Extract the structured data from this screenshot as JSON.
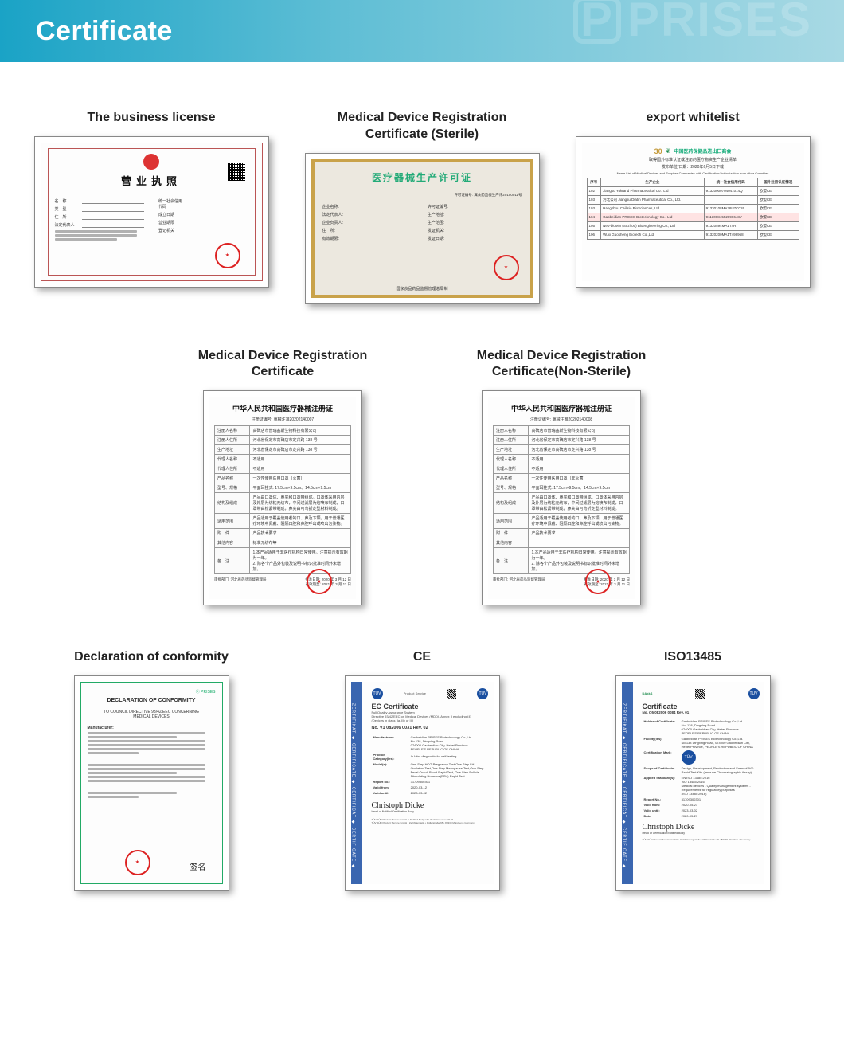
{
  "banner": {
    "title": "Certificate",
    "watermark_text": "PRISES",
    "gradient_from": "#1aa3c6",
    "gradient_to": "#a8d9e4"
  },
  "row1": [
    {
      "title": "The business license",
      "type": "business_license",
      "doc_title": "营业执照",
      "left_labels": [
        "名　称",
        "类　型",
        "住　所",
        "法定代表人"
      ],
      "right_labels": [
        "统一社会信用代码",
        "成立日期",
        "营业期限",
        "登记机关"
      ],
      "seal_text": "★"
    },
    {
      "title": "Medical Device Registration Certificate (Sterile)",
      "type": "gold_permit",
      "doc_title": "医疗器械生产许可证",
      "field_labels_left": [
        "企业名称:",
        "法定代表人:",
        "企业负责人:",
        "住　所:",
        "有效期限:"
      ],
      "field_labels_right": [
        "许可证编号:",
        "生产地址:",
        "生产范围:",
        "发证机关:",
        "发证日期:"
      ],
      "footer": "国家食品药品监督管理总局制",
      "top_note": "许可证编号: 冀食药监械生产许20150011号"
    },
    {
      "title": "export whitelist",
      "type": "whitelist",
      "logo_text": "中国医药保健品进出口商会",
      "logo_prefix": "30",
      "sub1": "取得国外标准认证或注册的医疗物资生产企业清单",
      "sub2": "发布单位/日期：2020年6月5日下载",
      "sub3": "Name List of Medical Devices and Supplies Companies with Certification/Authorization from other Countries",
      "columns": [
        "序号",
        "生产企业",
        "统一社会信用代码",
        "国外注册认证情况"
      ],
      "rows": [
        [
          "102",
          "Jiangsu Yukrand Pharmaceutical Co., Ltd",
          "91320000704041014Q",
          "欧盟CE"
        ],
        [
          "103",
          "河北公司  Jiangsu Diatin Pharmaceutical Co., Ltd.",
          "",
          "欧盟CE"
        ],
        [
          "103",
          "Hangzhou Cailisio BioSciences, Ltd.",
          "91330108MA28U7C01F",
          "欧盟CE"
        ],
        [
          "104",
          "Gaobeidian PRISES Biotechnology Co., Ltd",
          "91130684552890648Y",
          "欧盟CE"
        ],
        [
          "105",
          "Neo-bioMin (Suzhou) Bioengineering Co., Ltd",
          "91320594MA1T4R",
          "欧盟CE"
        ],
        [
          "106",
          "Wuxi Guosheng Biotech Co.,Ltd",
          "91320200MA1T498968",
          "欧盟CE"
        ]
      ],
      "highlight_row_index": 3
    }
  ],
  "row2": [
    {
      "title": "Medical Device Registration Certificate",
      "type": "cn_reg",
      "doc_title": "中华人民共和国医疗器械注册证",
      "doc_sub": "注册证编号: 冀械注准20202140007",
      "fields": [
        [
          "注册人名称",
          "高碑店市普瑞塞斯生物科技有限公司"
        ],
        [
          "注册人住所",
          "河北省保定市高碑店市定兴路 138 号"
        ],
        [
          "生产地址",
          "河北省保定市高碑店市定兴路 138 号"
        ],
        [
          "代理人名称",
          "不适用"
        ],
        [
          "代理人住所",
          "不适用"
        ],
        [
          "产品名称",
          "一次性使用医用口罩（灭菌）"
        ],
        [
          "型号、规格",
          "平面耳挂式: 17.5cm×9.5cm、14.5cm×9.5cm"
        ],
        [
          "结构及组成",
          "产品由口罩体、鼻夹和口罩带组成。口罩体采用内层及外层为纺粘无纺布，中间过滤层为熔喷布制成，口罩带由松紧带制成，鼻夹由可弯折定型材料制成。"
        ],
        [
          "适用范围",
          "产品适用于覆盖使用者的口、鼻及下颌，用于普通医疗环境中佩戴、阻隔口腔和鼻腔呼出或喷出污染物。"
        ],
        [
          "附　件",
          "产品技术要求"
        ],
        [
          "其他内容",
          "标准无纺布等"
        ],
        [
          "备　注",
          "1.本产品适用于非医疗机构日常使用。注意提示有效期为一年。\n2. 除各个产品外包装及说明书标识批准时间外未增加。"
        ]
      ],
      "footer_left": "审批部门: 河北省药品监督管理局",
      "footer_right": "批准日期: 2020 年 3 月 12 日\n有效期至: 2021 年 3 月 11 日"
    },
    {
      "title": "Medical Device Registration Certificate(Non-Sterile)",
      "type": "cn_reg",
      "doc_title": "中华人民共和国医疗器械注册证",
      "doc_sub": "注册证编号: 冀械注准20202140008",
      "fields": [
        [
          "注册人名称",
          "高碑店市普瑞塞斯生物科技有限公司"
        ],
        [
          "注册人住所",
          "河北省保定市高碑店市定兴路 138 号"
        ],
        [
          "生产地址",
          "河北省保定市高碑店市定兴路 138 号"
        ],
        [
          "代理人名称",
          "不适用"
        ],
        [
          "代理人住所",
          "不适用"
        ],
        [
          "产品名称",
          "一次性使用医用口罩（非灭菌）"
        ],
        [
          "型号、规格",
          "平面耳挂式: 17.5cm×9.5cm、14.5cm×9.5cm"
        ],
        [
          "结构及组成",
          "产品由口罩体、鼻夹和口罩带组成。口罩体采用内层及外层为纺粘无纺布，中间过滤层为熔喷布制成，口罩带由松紧带制成，鼻夹由可弯折定型材料制成。"
        ],
        [
          "适用范围",
          "产品适用于覆盖使用者的口、鼻及下颌，用于普通医疗环境中佩戴、阻隔口腔和鼻腔呼出或喷出污染物。"
        ],
        [
          "附　件",
          "产品技术要求"
        ],
        [
          "其他内容",
          ""
        ],
        [
          "备　注",
          "1.本产品适用于非医疗机构日常使用。注意提示有效期为一年。\n2. 除各个产品外包装及说明书标识批准时间外未增加。"
        ]
      ],
      "footer_left": "审批部门: 河北省药品监督管理局",
      "footer_right": "批准日期: 2020 年 3 月 12 日\n有效期至: 2021 年 3 月 11 日"
    }
  ],
  "row3": [
    {
      "title": "Declaration of conformity",
      "type": "doc_conformity",
      "head1": "DECLARATION OF CONFORMITY",
      "head2": "TO COUNCIL DIRECTIVE 93/42/EEC CONCERNING",
      "head3": "MEDICAL DEVICES",
      "manufacturer_label": "Manufacturer:",
      "signature_name": "签名"
    },
    {
      "title": "CE",
      "type": "ec_cert",
      "strip_text": "ZERTIFIKAT ◆ CERTIFICATE ◆ CERTIFICAT ◆ CERTIFICATE ◆",
      "doc_title": "EC Certificate",
      "doc_sub": "Full Quality Assurance System\nDirective 93/42/EEC on Medical Devices (MDD), Annex II excluding (4)\n(Devices in class IIa, IIb or III)",
      "no_label": "No. V1 082006 0031 Rev. 02",
      "rows": [
        [
          "Manufacturer:",
          "Gaobeidian PRISES Biotechnology Co.,Ltd.\nNo.138, Dingxing Road\n074000 Gaobeidian City, Hebei Province\nPEOPLE'S REPUBLIC OF CHINA"
        ],
        [
          "Product Category(ies):",
          "In Vitro diagnostic for self testing"
        ],
        [
          "Model(s):",
          "One Step HCG Pregnancy Test,One Step LH Ovulation Test,One Step Menopause Test,One Step Fecal Occult Blood Rapid Test, One Step Follicle Stimulating Hormone(FSH) Rapid Test"
        ],
        [
          "Report no.:",
          "31709300301"
        ],
        [
          "Valid from:",
          "2020-03-12"
        ],
        [
          "Valid until:",
          "2023-03-02"
        ]
      ],
      "signature_name": "Christoph Dicke",
      "signature_role": "Head of Notified/Certification Body",
      "footer": "TÜV SÜD Product Service GmbH is Notified Body with identification no. 0123\nTÜV SÜD Product Service GmbH • Zertifizierstelle • Ridlerstraße 65 • 80339 München • Germany"
    },
    {
      "title": "ISO13485",
      "type": "ec_cert",
      "strip_text": "ZERTIFIKAT ◆ CERTIFICATE ◆ CERTIFICAT ◆ CERTIFICATE ◆",
      "doc_title": "Certificate",
      "doc_sub": "No. Q5 082006 0084 Rev. 01",
      "rows": [
        [
          "Holder of Certificate:",
          "Gaobeidian PRISES Biotechnology Co.,Ltd.\nNo. 138, Dingxing Road\n074000 Gaobeidian City, Hebei Province\nPEOPLE'S REPUBLIC OF CHINA"
        ],
        [
          "Facility(ies):",
          "Gaobeidian PRISES Biotechnology Co.,Ltd.\nNo.138 Dingxing Road, 074000 Gaobeidian City,\nHebei Province, PEOPLE'S REPUBLIC OF CHINA"
        ],
        [
          "Certification Mark:",
          "TÜV"
        ],
        [
          "Scope of Certificate:",
          "Design, Development, Production and Sales of IVD Rapid Test Kits (Immune Chromatographic Assay)."
        ],
        [
          "Applied Standard(s):",
          "EN ISO 13485:2016\nISO 13485:2016\nMedical devices - Quality management systems - Requirements for regulatory purposes\n(ISO 13485:2016)"
        ],
        [
          "Report No.:",
          "31709300301"
        ],
        [
          "Valid from:",
          "2020-05-21"
        ],
        [
          "Valid until:",
          "2023-03-02"
        ],
        [
          "Date,",
          "2020-05-21"
        ]
      ],
      "signature_name": "Christoph Dicke",
      "signature_role": "Head of Certification/Notified Body",
      "footer": "TÜV SÜD Product Service GmbH • Zertifizierungsstelle • Ridlerstraße 65 • 80339 München • Germany"
    }
  ],
  "colors": {
    "seal_red": "#d22020",
    "frame_shadow": "rgba(0,0,0,0.35)",
    "gold": "#c9a24a",
    "ec_blue": "#3a66b0"
  }
}
